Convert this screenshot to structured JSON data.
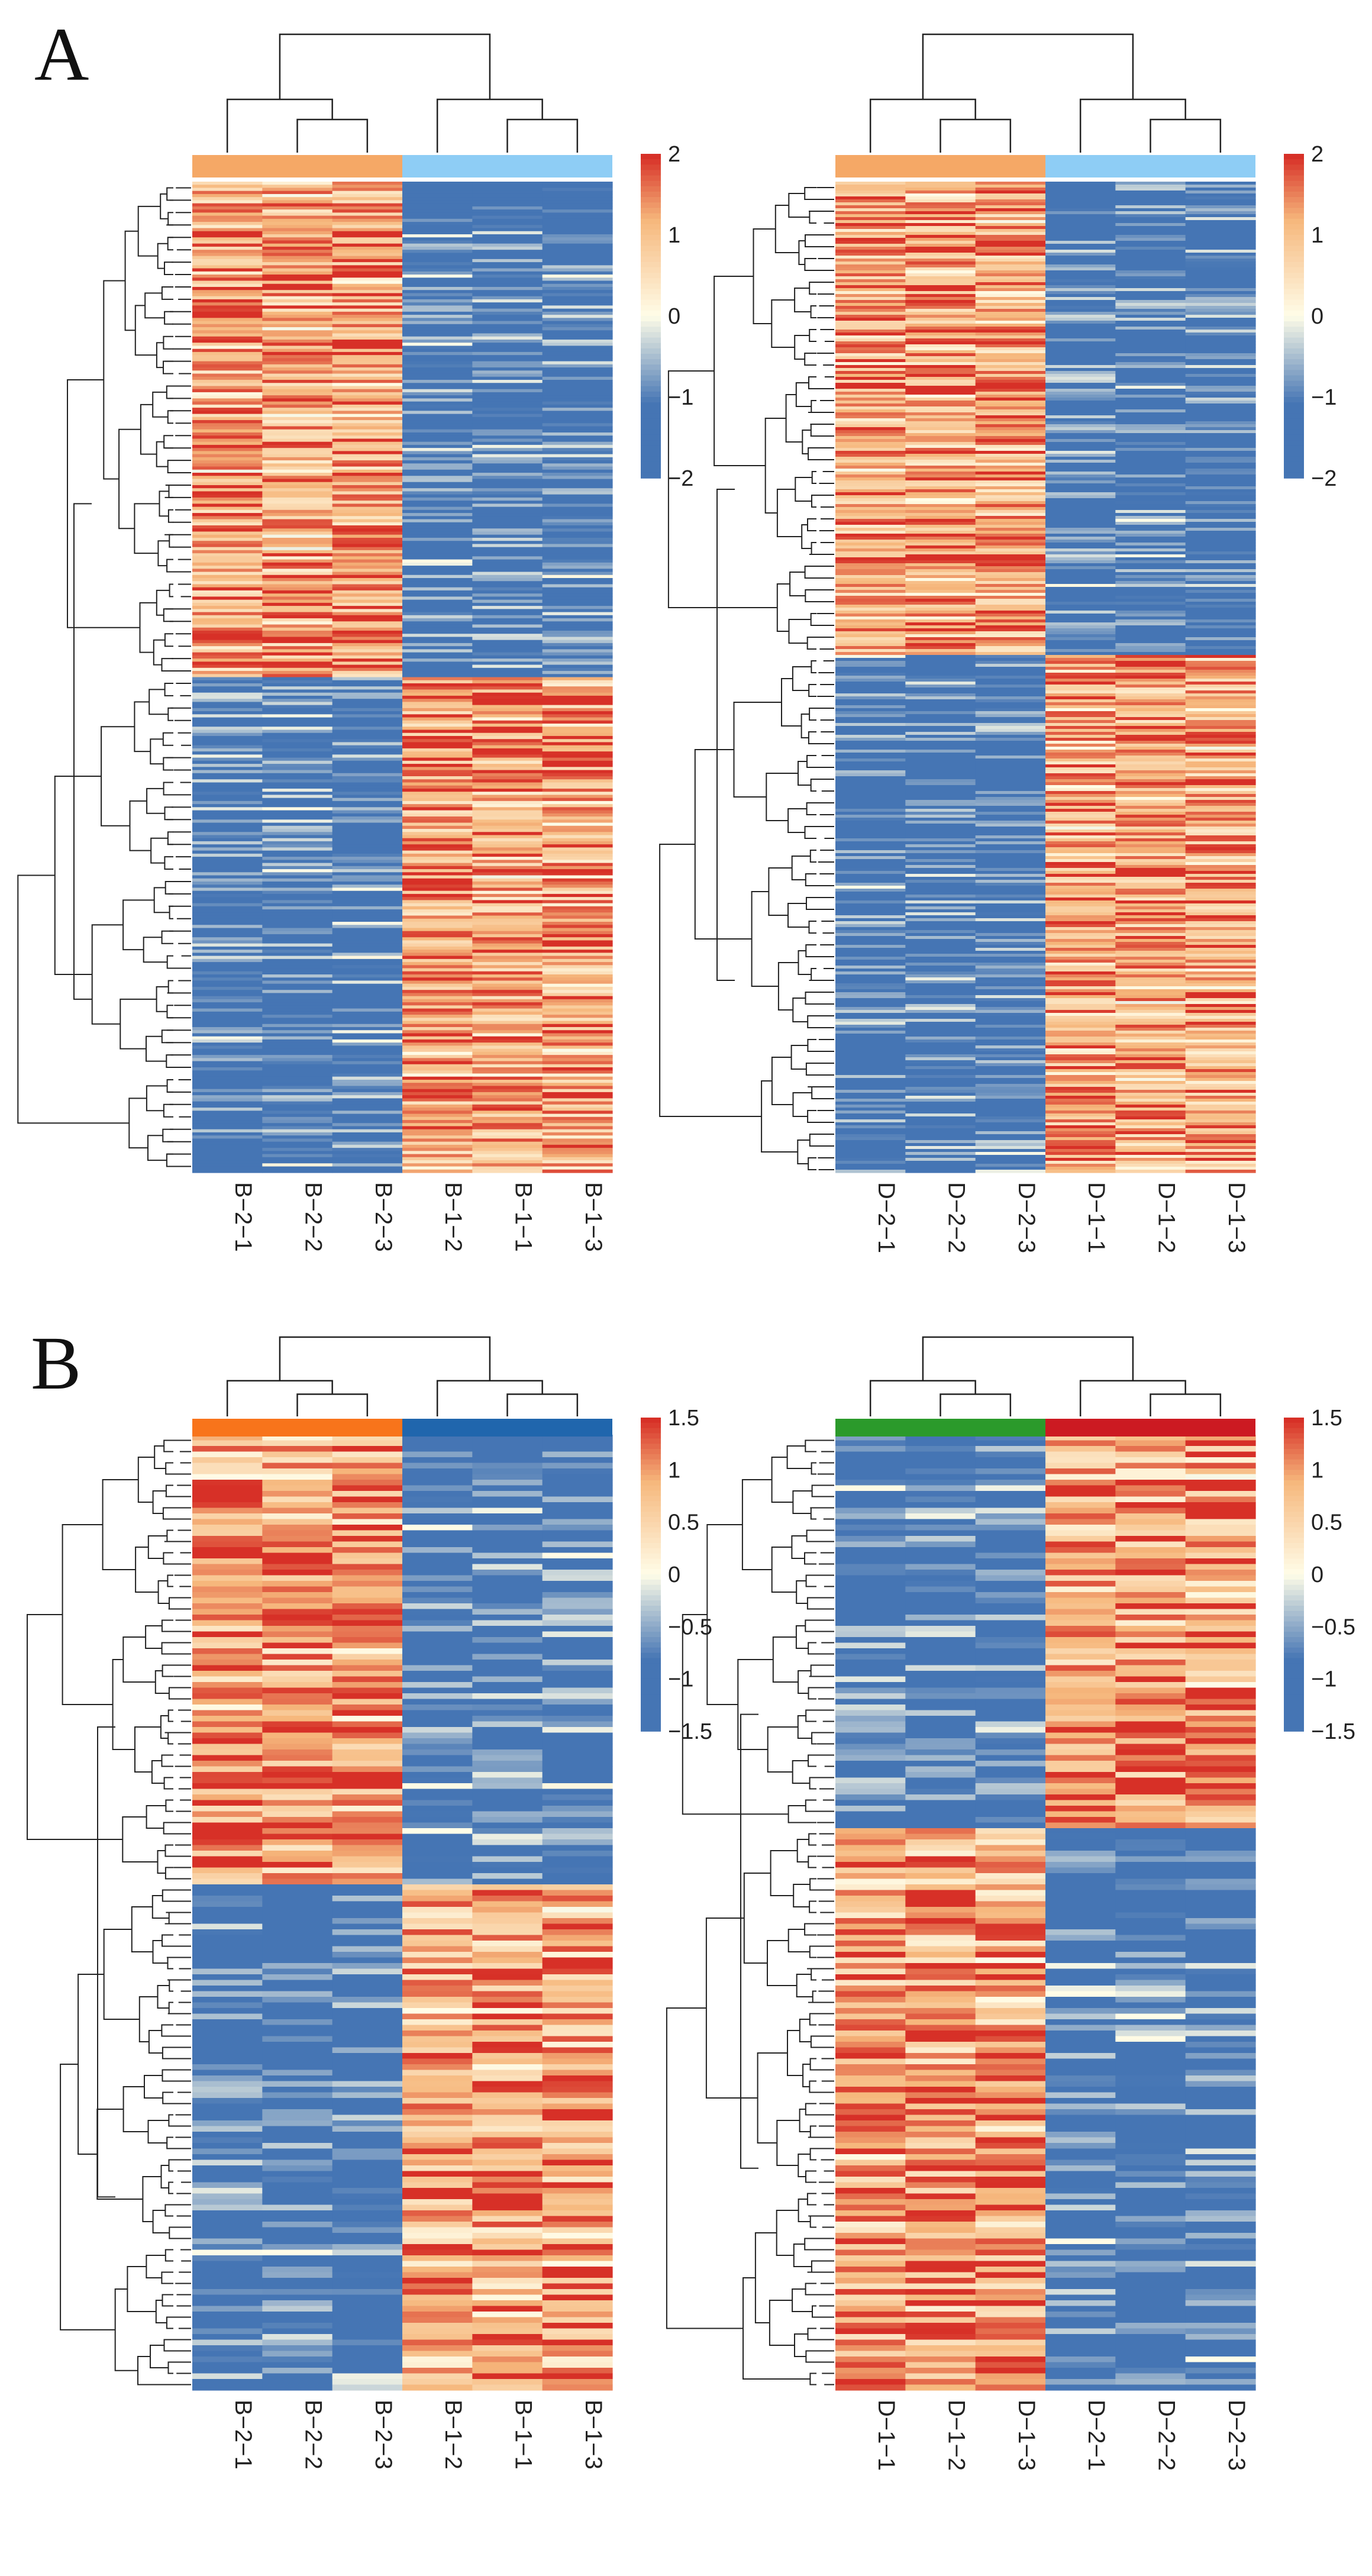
{
  "panels": [
    {
      "label": "A"
    },
    {
      "label": "B"
    }
  ],
  "colors": {
    "low": "#4575b4",
    "mid": "#fffde8",
    "high": "#d73027",
    "peach": "#f6b77c"
  },
  "chart_data": [
    {
      "type": "heatmap",
      "panel": "A",
      "title": "",
      "columns": [
        "B−2−1",
        "B−2−2",
        "B−2−3",
        "B−1−2",
        "B−1−1",
        "B−1−3"
      ],
      "column_groups": [
        {
          "members": [
            "B−2−1",
            "B−2−2",
            "B−2−3"
          ],
          "color": "#f5a866"
        },
        {
          "members": [
            "B−1−2",
            "B−1−1",
            "B−1−3"
          ],
          "color": "#8ecdf5"
        }
      ],
      "row_clusters": [
        {
          "rows": 160,
          "pattern": [
            1,
            1,
            1,
            -1,
            -1,
            -1
          ]
        },
        {
          "rows": 160,
          "pattern": [
            -1,
            -1,
            -1,
            1,
            1,
            1
          ]
        }
      ],
      "colorbar": {
        "min": -2,
        "max": 2,
        "ticks": [
          "2",
          "1",
          "0",
          "−1",
          "−2"
        ],
        "tick_values": [
          2,
          1,
          0,
          -1,
          -2
        ]
      },
      "seed": 11
    },
    {
      "type": "heatmap",
      "panel": "A",
      "title": "",
      "columns": [
        "D−2−1",
        "D−2−2",
        "D−2−3",
        "D−1−1",
        "D−1−2",
        "D−1−3"
      ],
      "column_groups": [
        {
          "members": [
            "D−2−1",
            "D−2−2",
            "D−2−3"
          ],
          "color": "#f5a866"
        },
        {
          "members": [
            "D−1−1",
            "D−1−2",
            "D−1−3"
          ],
          "color": "#8ecdf5"
        }
      ],
      "row_clusters": [
        {
          "rows": 160,
          "pattern": [
            1,
            1,
            1,
            -1,
            -1,
            -1
          ]
        },
        {
          "rows": 175,
          "pattern": [
            -1,
            -1,
            -1,
            1,
            1,
            1
          ]
        }
      ],
      "colorbar": {
        "min": -2,
        "max": 2,
        "ticks": [
          "2",
          "1",
          "0",
          "−1",
          "−2"
        ],
        "tick_values": [
          2,
          1,
          0,
          -1,
          -2
        ]
      },
      "seed": 23
    },
    {
      "type": "heatmap",
      "panel": "B",
      "title": "",
      "columns": [
        "B−2−1",
        "B−2−2",
        "B−2−3",
        "B−1−2",
        "B−1−1",
        "B−1−3"
      ],
      "column_groups": [
        {
          "members": [
            "B−2−1",
            "B−2−2",
            "B−2−3"
          ],
          "color": "#f8741b"
        },
        {
          "members": [
            "B−1−2",
            "B−1−1",
            "B−1−3"
          ],
          "color": "#2066ad"
        }
      ],
      "row_clusters": [
        {
          "rows": 80,
          "pattern": [
            1,
            1,
            1,
            -1,
            -1,
            -1
          ]
        },
        {
          "rows": 90,
          "pattern": [
            -1,
            -1,
            -1,
            1,
            1,
            1
          ]
        }
      ],
      "colorbar": {
        "min": -1.5,
        "max": 1.5,
        "ticks": [
          "1.5",
          "1",
          "0.5",
          "0",
          "−0.5",
          "−1",
          "−1.5"
        ],
        "tick_values": [
          1.5,
          1,
          0.5,
          0,
          -0.5,
          -1,
          -1.5
        ]
      },
      "seed": 37
    },
    {
      "type": "heatmap",
      "panel": "B",
      "title": "",
      "columns": [
        "D−1−1",
        "D−1−2",
        "D−1−3",
        "D−2−1",
        "D−2−2",
        "D−2−3"
      ],
      "column_groups": [
        {
          "members": [
            "D−1−1",
            "D−1−2",
            "D−1−3"
          ],
          "color": "#2b9a2b"
        },
        {
          "members": [
            "D−2−1",
            "D−2−2",
            "D−2−3"
          ],
          "color": "#cc1a22"
        }
      ],
      "row_clusters": [
        {
          "rows": 70,
          "pattern": [
            -1,
            -1,
            -1,
            1,
            1,
            1
          ]
        },
        {
          "rows": 100,
          "pattern": [
            1,
            1,
            1,
            -1,
            -1,
            -1
          ]
        }
      ],
      "colorbar": {
        "min": -1.5,
        "max": 1.5,
        "ticks": [
          "1.5",
          "1",
          "0.5",
          "0",
          "−0.5",
          "−1",
          "−1.5"
        ],
        "tick_values": [
          1.5,
          1,
          0.5,
          0,
          -0.5,
          -1,
          -1.5
        ]
      },
      "seed": 51
    }
  ]
}
